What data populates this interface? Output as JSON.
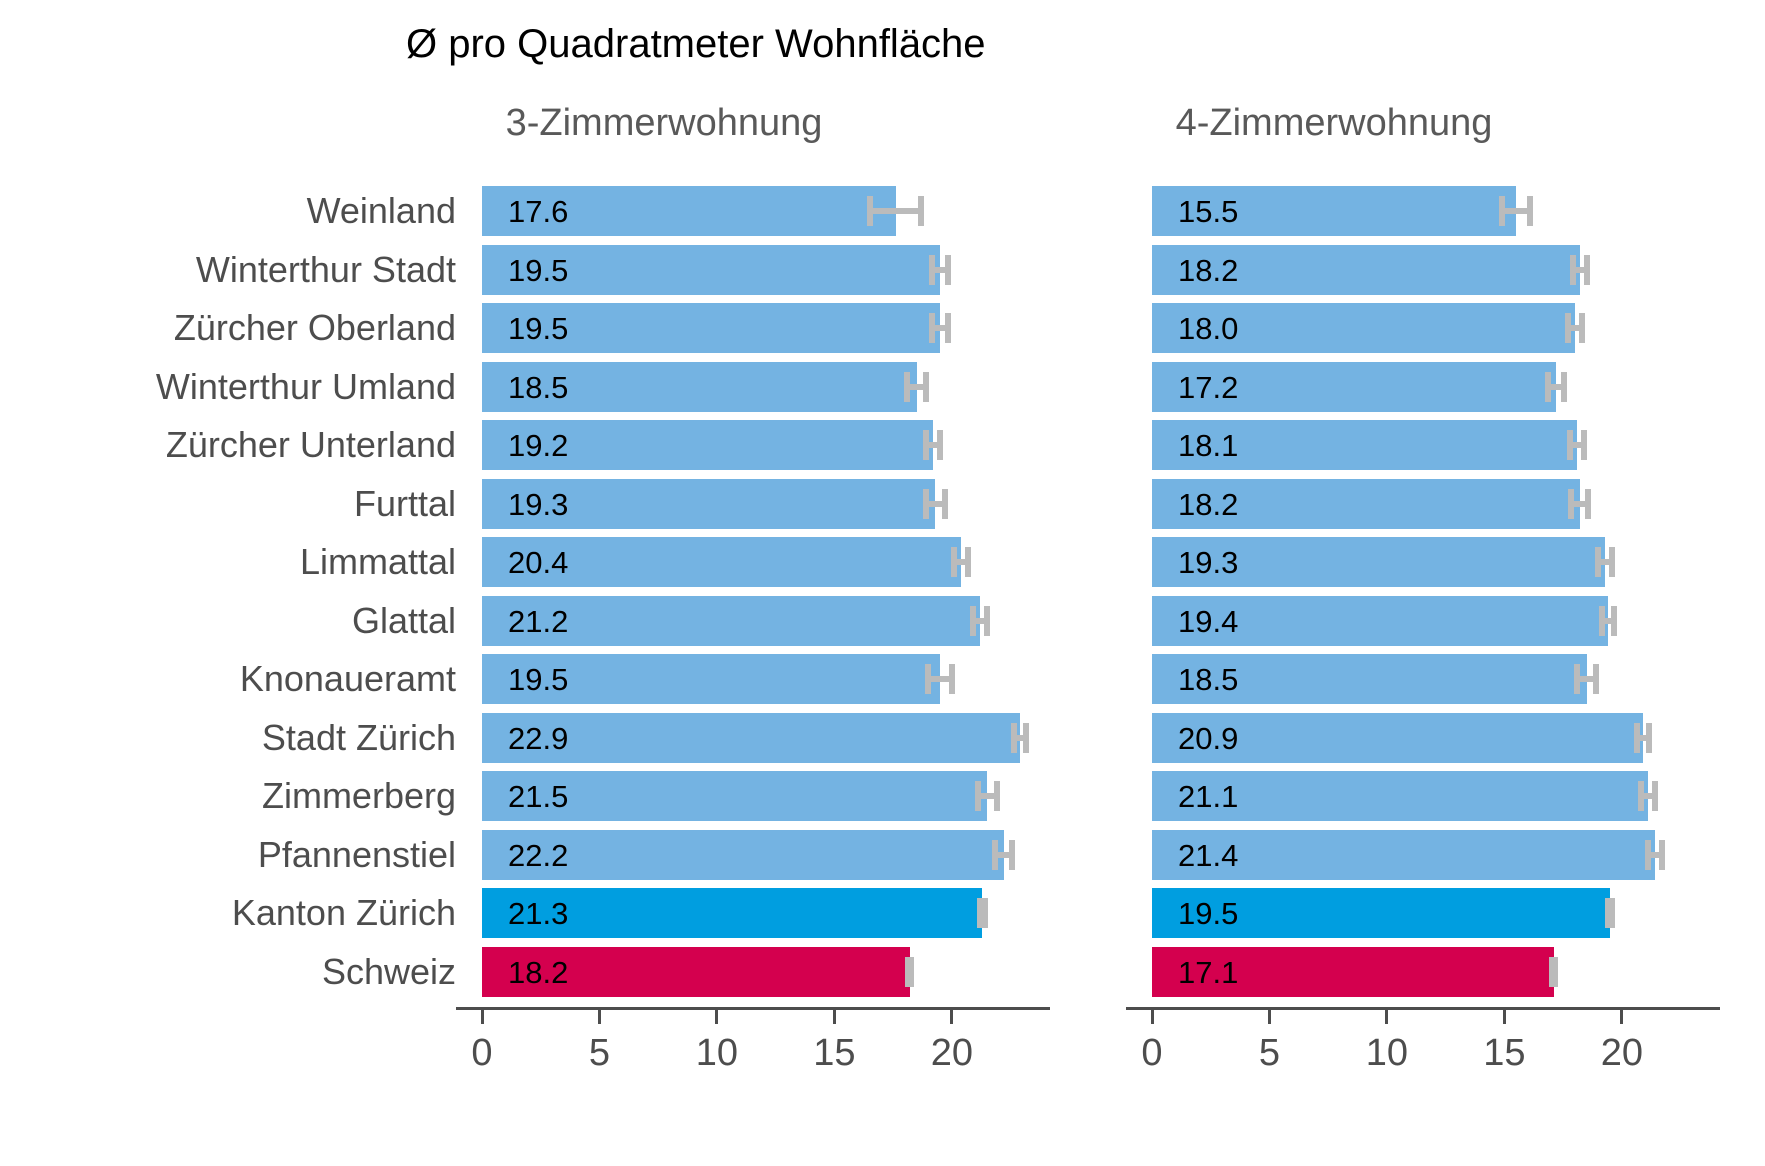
{
  "title": "Ø pro Quadratmeter Wohnfläche",
  "colors": {
    "bar_default": "#74b3e2",
    "bar_kanton": "#009ee0",
    "bar_schweiz": "#d4004e",
    "error_bar": "#bbbbbb",
    "axis": "#4d4d4d",
    "tick_label": "#4d4d4d",
    "category_label": "#4d4d4d",
    "subtitle": "#595959",
    "title": "#000000",
    "value_label": "#000000",
    "background": "#ffffff"
  },
  "chart_data": {
    "type": "bar",
    "orientation": "horizontal",
    "title": "Ø pro Quadratmeter Wohnfläche",
    "categories": [
      "Weinland",
      "Winterthur Stadt",
      "Zürcher Oberland",
      "Winterthur Umland",
      "Zürcher Unterland",
      "Furttal",
      "Limmattal",
      "Glattal",
      "Knonaueramt",
      "Stadt Zürich",
      "Zimmerberg",
      "Pfannenstiel",
      "Kanton Zürich",
      "Schweiz"
    ],
    "bar_color_keys": [
      "bar_default",
      "bar_default",
      "bar_default",
      "bar_default",
      "bar_default",
      "bar_default",
      "bar_default",
      "bar_default",
      "bar_default",
      "bar_default",
      "bar_default",
      "bar_default",
      "bar_kanton",
      "bar_schweiz"
    ],
    "series": [
      {
        "name": "3-Zimmerwohnung",
        "values": [
          17.6,
          19.5,
          19.5,
          18.5,
          19.2,
          19.3,
          20.4,
          21.2,
          19.5,
          22.9,
          21.5,
          22.2,
          21.3,
          18.2
        ],
        "errors": [
          1.1,
          0.35,
          0.35,
          0.4,
          0.3,
          0.4,
          0.3,
          0.3,
          0.5,
          0.25,
          0.4,
          0.35,
          0.1,
          0.06
        ]
      },
      {
        "name": "4-Zimmerwohnung",
        "values": [
          15.5,
          18.2,
          18.0,
          17.2,
          18.1,
          18.2,
          19.3,
          19.4,
          18.5,
          20.9,
          21.1,
          21.4,
          19.5,
          17.1
        ],
        "errors": [
          0.6,
          0.3,
          0.3,
          0.35,
          0.3,
          0.35,
          0.3,
          0.25,
          0.4,
          0.25,
          0.3,
          0.3,
          0.1,
          0.06
        ]
      }
    ],
    "value_label_decimals": 1,
    "xlim": [
      0,
      23.75
    ],
    "xticks": [
      0,
      5,
      10,
      15,
      20
    ],
    "grid": false,
    "legend": false,
    "error_bars": true
  }
}
